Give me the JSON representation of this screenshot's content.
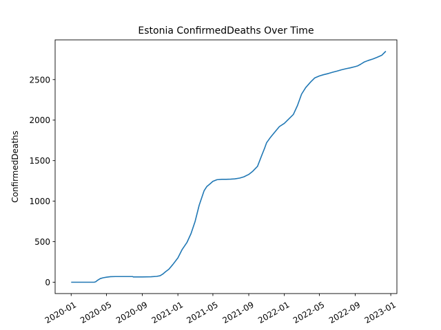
{
  "chart_data": {
    "type": "line",
    "title": "Estonia  ConfirmedDeaths Over Time",
    "xlabel": "",
    "ylabel": "ConfirmedDeaths",
    "x_ticks": [
      "2020-01",
      "2020-05",
      "2020-09",
      "2021-01",
      "2021-05",
      "2021-09",
      "2022-01",
      "2022-05",
      "2022-09",
      "2023-01"
    ],
    "y_ticks": [
      0,
      500,
      1000,
      1500,
      2000,
      2500
    ],
    "xlim": [
      "2019-11-07",
      "2023-01-22"
    ],
    "ylim": [
      -140,
      2990
    ],
    "grid": false,
    "legend": "none",
    "color": "#1f77b4",
    "series": [
      {
        "x": [
          "2020-01-01",
          "2020-03-20",
          "2020-03-25",
          "2020-04-01",
          "2020-04-10",
          "2020-04-20",
          "2020-05-01",
          "2020-05-15",
          "2020-06-01",
          "2020-07-01",
          "2020-07-30",
          "2020-08-01",
          "2020-09-01",
          "2020-10-01",
          "2020-10-20",
          "2020-11-01",
          "2020-11-10",
          "2020-11-20",
          "2020-12-01",
          "2020-12-15",
          "2021-01-01",
          "2021-01-15",
          "2021-02-01",
          "2021-02-15",
          "2021-03-01",
          "2021-03-15",
          "2021-04-01",
          "2021-04-10",
          "2021-04-20",
          "2021-05-01",
          "2021-05-15",
          "2021-06-01",
          "2021-06-15",
          "2021-07-01",
          "2021-07-15",
          "2021-08-01",
          "2021-08-15",
          "2021-09-01",
          "2021-09-15",
          "2021-10-01",
          "2021-10-15",
          "2021-10-25",
          "2021-11-01",
          "2021-11-15",
          "2021-12-01",
          "2021-12-15",
          "2022-01-01",
          "2022-01-15",
          "2022-02-01",
          "2022-02-15",
          "2022-03-01",
          "2022-03-15",
          "2022-04-01",
          "2022-04-15",
          "2022-05-01",
          "2022-05-15",
          "2022-06-01",
          "2022-06-15",
          "2022-07-01",
          "2022-07-15",
          "2022-08-01",
          "2022-08-15",
          "2022-09-01",
          "2022-09-10",
          "2022-09-20",
          "2022-10-01",
          "2022-10-15",
          "2022-11-01",
          "2022-11-15",
          "2022-12-01",
          "2022-12-15"
        ],
        "y": [
          0,
          0,
          5,
          25,
          45,
          55,
          62,
          68,
          70,
          70,
          70,
          65,
          65,
          67,
          72,
          80,
          100,
          130,
          160,
          220,
          300,
          400,
          490,
          600,
          750,
          950,
          1130,
          1180,
          1210,
          1245,
          1265,
          1270,
          1270,
          1272,
          1275,
          1285,
          1300,
          1330,
          1370,
          1430,
          1560,
          1650,
          1720,
          1790,
          1860,
          1920,
          1960,
          2010,
          2070,
          2180,
          2320,
          2400,
          2470,
          2520,
          2545,
          2560,
          2575,
          2590,
          2605,
          2620,
          2635,
          2645,
          2660,
          2670,
          2690,
          2715,
          2735,
          2755,
          2775,
          2800,
          2850
        ]
      }
    ]
  }
}
